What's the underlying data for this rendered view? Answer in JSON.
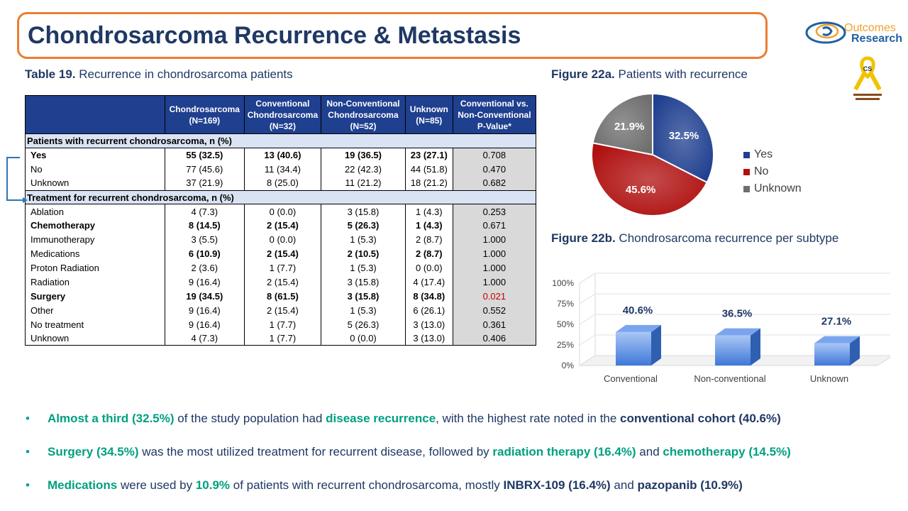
{
  "title": "Chondrosarcoma Recurrence & Metastasis",
  "logo": {
    "line1": "Outcomes",
    "line2": "Research"
  },
  "table": {
    "caption_bold": "Table 19.",
    "caption_text": " Recurrence in chondrosarcoma patients",
    "headers": [
      "",
      "Chondrosarcoma (N=169)",
      "Conventional Chondrosarcoma (N=32)",
      "Non-Conventional Chondrosarcoma (N=52)",
      "Unknown (N=85)",
      "Conventional vs. Non-Conventional P-Value*"
    ],
    "sections": [
      {
        "title": "Patients with recurrent chondrosarcoma, n (%)",
        "rows": [
          {
            "label": "Yes",
            "bold": true,
            "cells": [
              "55 (32.5)",
              "13 (40.6)",
              "19 (36.5)",
              "23 (27.1)"
            ],
            "p": "0.708"
          },
          {
            "label": "No",
            "bold": false,
            "cells": [
              "77 (45.6)",
              "11 (34.4)",
              "22 (42.3)",
              "44 (51.8)"
            ],
            "p": "0.470"
          },
          {
            "label": "Unknown",
            "bold": false,
            "cells": [
              "37 (21.9)",
              "8 (25.0)",
              "11 (21.2)",
              "18 (21.2)"
            ],
            "p": "0.682"
          }
        ]
      },
      {
        "title": "Treatment for recurrent chondrosarcoma, n (%)",
        "rows": [
          {
            "label": "Ablation",
            "bold": false,
            "cells": [
              "4 (7.3)",
              "0 (0.0)",
              "3 (15.8)",
              "1 (4.3)"
            ],
            "p": "0.253"
          },
          {
            "label": "Chemotherapy",
            "bold": true,
            "cells": [
              "8 (14.5)",
              "2 (15.4)",
              "5 (26.3)",
              "1 (4.3)"
            ],
            "p": "0.671"
          },
          {
            "label": "Immunotherapy",
            "bold": false,
            "cells": [
              "3 (5.5)",
              "0 (0.0)",
              "1 (5.3)",
              "2 (8.7)"
            ],
            "p": "1.000"
          },
          {
            "label": "Medications",
            "bold": false,
            "boldCells": true,
            "cells": [
              "6 (10.9)",
              "2 (15.4)",
              "2 (10.5)",
              "2 (8.7)"
            ],
            "p": "1.000"
          },
          {
            "label": "Proton Radiation",
            "bold": false,
            "cells": [
              "2 (3.6)",
              "1 (7.7)",
              "1 (5.3)",
              "0 (0.0)"
            ],
            "p": "1.000"
          },
          {
            "label": "Radiation",
            "bold": false,
            "cells": [
              "9 (16.4)",
              "2 (15.4)",
              "3 (15.8)",
              "4 (17.4)"
            ],
            "p": "1.000"
          },
          {
            "label": "Surgery",
            "bold": true,
            "cells": [
              "19 (34.5)",
              "8 (61.5)",
              "3 (15.8)",
              "8 (34.8)"
            ],
            "p": "0.021",
            "p_red": true
          },
          {
            "label": "Other",
            "bold": false,
            "cells": [
              "9 (16.4)",
              "2 (15.4)",
              "1 (5.3)",
              "6 (26.1)"
            ],
            "p": "0.552"
          },
          {
            "label": "No treatment",
            "bold": false,
            "cells": [
              "9 (16.4)",
              "1 (7.7)",
              "5 (26.3)",
              "3 (13.0)"
            ],
            "p": "0.361"
          },
          {
            "label": "Unknown",
            "bold": false,
            "cells": [
              "4 (7.3)",
              "1 (7.7)",
              "0 (0.0)",
              "3 (13.0)"
            ],
            "p": "0.406"
          }
        ]
      }
    ]
  },
  "colors": {
    "yes": "#1f3f8f",
    "no": "#b01010",
    "unknown": "#6e6e6e",
    "bar": "#4a86e8",
    "accent": "#00a080",
    "title": "#1f3864"
  },
  "chart_data": [
    {
      "type": "pie",
      "caption_bold": "Figure 22a.",
      "caption_text": " Patients with recurrence",
      "categories": [
        "Yes",
        "No",
        "Unknown"
      ],
      "values": [
        32.5,
        45.6,
        21.9
      ],
      "labels": [
        "32.5%",
        "45.6%",
        "21.9%"
      ],
      "legend": "right"
    },
    {
      "type": "bar",
      "caption_bold": "Figure 22b.",
      "caption_text": " Chondrosarcoma recurrence per subtype",
      "categories": [
        "Conventional",
        "Non-conventional",
        "Unknown"
      ],
      "values": [
        40.6,
        36.5,
        27.1
      ],
      "labels": [
        "40.6%",
        "36.5%",
        "27.1%"
      ],
      "yticks": [
        "0%",
        "25%",
        "50%",
        "75%",
        "100%"
      ],
      "ylim": [
        0,
        100
      ]
    }
  ],
  "bullets": [
    [
      {
        "t": "Almost a third (32.5%)",
        "s": "g"
      },
      {
        "t": " of the study population had ",
        "s": ""
      },
      {
        "t": "disease recurrence",
        "s": "g"
      },
      {
        "t": ", with the highest rate noted in the ",
        "s": ""
      },
      {
        "t": "conventional cohort (40.6%)",
        "s": "nb"
      }
    ],
    [
      {
        "t": "Surgery (34.5%)",
        "s": "g"
      },
      {
        "t": " was the most utilized treatment for recurrent disease, followed by ",
        "s": ""
      },
      {
        "t": "radiation therapy (16.4%)",
        "s": "g"
      },
      {
        "t": " and ",
        "s": ""
      },
      {
        "t": "chemotherapy (14.5%)",
        "s": "g"
      }
    ],
    [
      {
        "t": "Medications",
        "s": "g"
      },
      {
        "t": " were used by ",
        "s": ""
      },
      {
        "t": "10.9%",
        "s": "g"
      },
      {
        "t": " of patients with recurrent chondrosarcoma, mostly ",
        "s": ""
      },
      {
        "t": "INBRX-109 (16.4%)",
        "s": "nb"
      },
      {
        "t": " and ",
        "s": ""
      },
      {
        "t": "pazopanib (10.9%)",
        "s": "nb"
      }
    ]
  ]
}
